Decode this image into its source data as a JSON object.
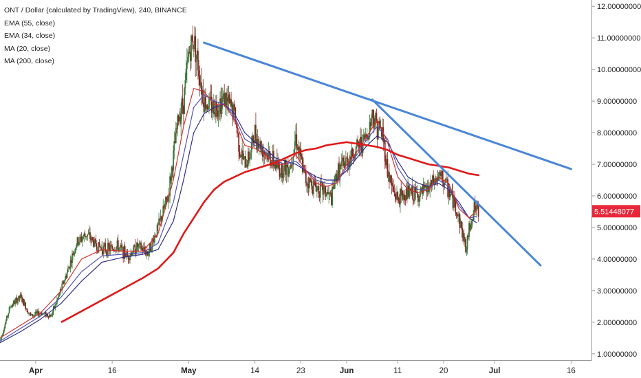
{
  "legend": {
    "title": "ONT / Dollar (calculated by TradingView), 240, BINANCE",
    "items": [
      "EMA (55, close)",
      "EMA (34, close)",
      "MA (20, close)",
      "MA (200, close)"
    ]
  },
  "colors": {
    "candle_up": "#3a7a3a",
    "candle_down": "#8b2222",
    "ema55": "#2c2c8a",
    "ema34": "#5252b8",
    "ma20": "#d43030",
    "ma200": "#e01818",
    "trendline": "#4a86d8",
    "price_tag": "#e8283a",
    "axis": "#999999"
  },
  "chart_data": {
    "type": "line",
    "title": "ONT / Dollar (calculated by TradingView), 240, BINANCE",
    "xlabel": "",
    "ylabel": "",
    "ylim": [
      0.8,
      12.2
    ],
    "grid": false,
    "x_ticks": [
      {
        "label": "Apr",
        "day": 7,
        "month": true
      },
      {
        "label": "16",
        "day": 22,
        "month": false
      },
      {
        "label": "May",
        "day": 37,
        "month": true
      },
      {
        "label": "14",
        "day": 50,
        "month": false
      },
      {
        "label": "23",
        "day": 59,
        "month": false
      },
      {
        "label": "Jun",
        "day": 68,
        "month": true
      },
      {
        "label": "11",
        "day": 78,
        "month": false
      },
      {
        "label": "20",
        "day": 87,
        "month": false
      },
      {
        "label": "Jul",
        "day": 97,
        "month": true
      },
      {
        "label": "16",
        "day": 112,
        "month": false
      }
    ],
    "y_ticks": [
      "1.00000000",
      "2.00000000",
      "3.00000000",
      "4.00000000",
      "5.00000000",
      "6.00000000",
      "7.00000000",
      "8.00000000",
      "9.00000000",
      "10.00000000",
      "11.00000000",
      "12.00000000"
    ],
    "y_tick_values": [
      1,
      2,
      3,
      4,
      5,
      6,
      7,
      8,
      9,
      10,
      11,
      12
    ],
    "last_price_label": "5.51448077",
    "last_price": 5.514,
    "price_path": [
      [
        0,
        1.4
      ],
      [
        2,
        2.5
      ],
      [
        4,
        2.8
      ],
      [
        6,
        2.2
      ],
      [
        8,
        2.3
      ],
      [
        10,
        2.2
      ],
      [
        11,
        2.6
      ],
      [
        13,
        3.5
      ],
      [
        15,
        4.5
      ],
      [
        17,
        4.8
      ],
      [
        19,
        4.4
      ],
      [
        21,
        4.3
      ],
      [
        23,
        4.4
      ],
      [
        25,
        4.1
      ],
      [
        27,
        4.4
      ],
      [
        29,
        4.2
      ],
      [
        31,
        5.0
      ],
      [
        33,
        6.0
      ],
      [
        35,
        8.5
      ],
      [
        36,
        9.0
      ],
      [
        37,
        10.5
      ],
      [
        38,
        11.0
      ],
      [
        39,
        10.0
      ],
      [
        40,
        9.0
      ],
      [
        42,
        8.8
      ],
      [
        44,
        9.1
      ],
      [
        46,
        8.6
      ],
      [
        47,
        7.5
      ],
      [
        48,
        7.0
      ],
      [
        49,
        7.3
      ],
      [
        50,
        8.0
      ],
      [
        51,
        7.6
      ],
      [
        53,
        7.2
      ],
      [
        55,
        6.8
      ],
      [
        57,
        7.0
      ],
      [
        58,
        7.9
      ],
      [
        59,
        7.1
      ],
      [
        60,
        6.5
      ],
      [
        62,
        6.3
      ],
      [
        64,
        6.1
      ],
      [
        65,
        5.9
      ],
      [
        66,
        6.7
      ],
      [
        68,
        7.1
      ],
      [
        70,
        7.5
      ],
      [
        72,
        7.9
      ],
      [
        73,
        8.6
      ],
      [
        74,
        8.2
      ],
      [
        75,
        8.0
      ],
      [
        76,
        6.8
      ],
      [
        77,
        6.2
      ],
      [
        78,
        5.9
      ],
      [
        80,
        6.1
      ],
      [
        82,
        6.0
      ],
      [
        84,
        6.2
      ],
      [
        86,
        6.6
      ],
      [
        87,
        6.5
      ],
      [
        89,
        5.8
      ],
      [
        90,
        5.3
      ],
      [
        91,
        4.6
      ],
      [
        91.5,
        4.3
      ],
      [
        92,
        5.0
      ],
      [
        93,
        5.6
      ],
      [
        94,
        5.5
      ]
    ],
    "series": [
      {
        "name": "EMA (55, close)",
        "values": [
          [
            0,
            1.35
          ],
          [
            4,
            1.7
          ],
          [
            8,
            2.1
          ],
          [
            12,
            2.6
          ],
          [
            16,
            3.3
          ],
          [
            20,
            3.9
          ],
          [
            24,
            4.05
          ],
          [
            28,
            4.15
          ],
          [
            31,
            4.3
          ],
          [
            34,
            5.2
          ],
          [
            36,
            6.5
          ],
          [
            38,
            8.0
          ],
          [
            40,
            8.6
          ],
          [
            42,
            8.8
          ],
          [
            44,
            8.9
          ],
          [
            46,
            8.6
          ],
          [
            48,
            8.0
          ],
          [
            50,
            7.7
          ],
          [
            52,
            7.5
          ],
          [
            54,
            7.2
          ],
          [
            56,
            7.1
          ],
          [
            58,
            7.0
          ],
          [
            60,
            6.8
          ],
          [
            62,
            6.6
          ],
          [
            64,
            6.5
          ],
          [
            66,
            6.5
          ],
          [
            68,
            6.8
          ],
          [
            70,
            7.2
          ],
          [
            72,
            7.6
          ],
          [
            74,
            7.9
          ],
          [
            76,
            7.7
          ],
          [
            78,
            7.1
          ],
          [
            80,
            6.6
          ],
          [
            82,
            6.4
          ],
          [
            84,
            6.3
          ],
          [
            86,
            6.4
          ],
          [
            88,
            6.2
          ],
          [
            90,
            5.8
          ],
          [
            92,
            5.3
          ],
          [
            93.5,
            5.15
          ]
        ]
      },
      {
        "name": "EMA (34, close)",
        "values": [
          [
            0,
            1.4
          ],
          [
            4,
            1.8
          ],
          [
            8,
            2.2
          ],
          [
            12,
            2.8
          ],
          [
            16,
            3.6
          ],
          [
            20,
            4.1
          ],
          [
            24,
            4.15
          ],
          [
            28,
            4.2
          ],
          [
            31,
            4.5
          ],
          [
            34,
            5.8
          ],
          [
            36,
            7.3
          ],
          [
            38,
            8.8
          ],
          [
            40,
            9.2
          ],
          [
            42,
            9.0
          ],
          [
            44,
            8.9
          ],
          [
            46,
            8.5
          ],
          [
            48,
            7.8
          ],
          [
            50,
            7.6
          ],
          [
            52,
            7.4
          ],
          [
            54,
            7.1
          ],
          [
            56,
            7.0
          ],
          [
            58,
            7.1
          ],
          [
            60,
            6.8
          ],
          [
            62,
            6.5
          ],
          [
            64,
            6.4
          ],
          [
            66,
            6.4
          ],
          [
            68,
            6.9
          ],
          [
            70,
            7.3
          ],
          [
            72,
            7.8
          ],
          [
            74,
            8.2
          ],
          [
            76,
            7.8
          ],
          [
            78,
            6.9
          ],
          [
            80,
            6.4
          ],
          [
            82,
            6.2
          ],
          [
            84,
            6.2
          ],
          [
            86,
            6.5
          ],
          [
            88,
            6.3
          ],
          [
            90,
            5.7
          ],
          [
            92,
            5.3
          ],
          [
            93.5,
            5.35
          ]
        ]
      },
      {
        "name": "MA (20, close)",
        "values": [
          [
            0,
            1.5
          ],
          [
            4,
            1.9
          ],
          [
            8,
            2.3
          ],
          [
            12,
            3.0
          ],
          [
            16,
            4.0
          ],
          [
            20,
            4.3
          ],
          [
            24,
            4.25
          ],
          [
            28,
            4.25
          ],
          [
            31,
            4.8
          ],
          [
            34,
            6.5
          ],
          [
            36,
            8.2
          ],
          [
            38,
            9.4
          ],
          [
            40,
            9.3
          ],
          [
            42,
            8.9
          ],
          [
            44,
            8.9
          ],
          [
            46,
            8.4
          ],
          [
            48,
            7.6
          ],
          [
            50,
            7.5
          ],
          [
            52,
            7.3
          ],
          [
            54,
            7.0
          ],
          [
            56,
            7.0
          ],
          [
            58,
            7.3
          ],
          [
            60,
            6.8
          ],
          [
            62,
            6.4
          ],
          [
            64,
            6.3
          ],
          [
            66,
            6.4
          ],
          [
            68,
            7.0
          ],
          [
            70,
            7.4
          ],
          [
            72,
            7.9
          ],
          [
            74,
            8.4
          ],
          [
            76,
            7.7
          ],
          [
            78,
            6.6
          ],
          [
            80,
            6.2
          ],
          [
            82,
            6.1
          ],
          [
            84,
            6.2
          ],
          [
            86,
            6.6
          ],
          [
            88,
            6.4
          ],
          [
            90,
            5.6
          ],
          [
            92,
            5.3
          ],
          [
            93.5,
            5.55
          ]
        ]
      },
      {
        "name": "MA (200, close)",
        "values": [
          [
            12,
            2.0
          ],
          [
            16,
            2.35
          ],
          [
            20,
            2.7
          ],
          [
            24,
            3.05
          ],
          [
            28,
            3.4
          ],
          [
            31,
            3.7
          ],
          [
            34,
            4.2
          ],
          [
            36,
            4.8
          ],
          [
            38,
            5.3
          ],
          [
            40,
            5.8
          ],
          [
            42,
            6.2
          ],
          [
            44,
            6.45
          ],
          [
            46,
            6.6
          ],
          [
            48,
            6.75
          ],
          [
            50,
            6.85
          ],
          [
            52,
            6.95
          ],
          [
            54,
            7.05
          ],
          [
            56,
            7.2
          ],
          [
            58,
            7.35
          ],
          [
            60,
            7.45
          ],
          [
            62,
            7.5
          ],
          [
            64,
            7.6
          ],
          [
            66,
            7.65
          ],
          [
            68,
            7.7
          ],
          [
            70,
            7.65
          ],
          [
            72,
            7.6
          ],
          [
            74,
            7.55
          ],
          [
            76,
            7.45
          ],
          [
            78,
            7.3
          ],
          [
            80,
            7.2
          ],
          [
            82,
            7.1
          ],
          [
            84,
            7.0
          ],
          [
            86,
            6.95
          ],
          [
            88,
            6.9
          ],
          [
            90,
            6.8
          ],
          [
            92,
            6.7
          ],
          [
            94,
            6.65
          ]
        ]
      }
    ],
    "trendlines": [
      {
        "points": [
          [
            40,
            10.85
          ],
          [
            112,
            6.85
          ]
        ]
      },
      {
        "points": [
          [
            73,
            9.05
          ],
          [
            106,
            3.8
          ]
        ]
      }
    ]
  }
}
